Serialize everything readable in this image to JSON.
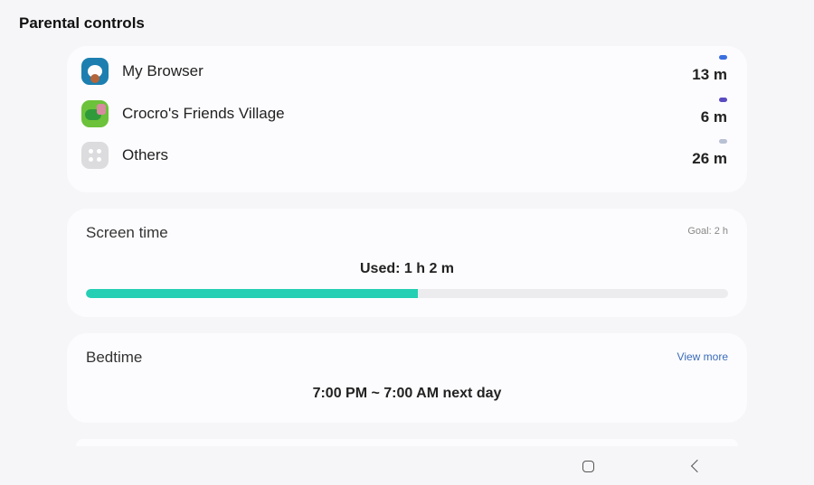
{
  "header": {
    "title": "Parental controls"
  },
  "apps": [
    {
      "name": "My Browser",
      "time": "13 m",
      "color": "#3a6fe0",
      "icon": "browser-app-icon"
    },
    {
      "name": "Crocro's Friends Village",
      "time": "6 m",
      "color": "#5a4bc0",
      "icon": "crocro-app-icon"
    },
    {
      "name": "Others",
      "time": "26 m",
      "color": "#b8c0d4",
      "icon": "others-grid-icon"
    }
  ],
  "screen_time": {
    "label": "Screen time",
    "goal": "Goal: 2 h",
    "used": "Used: 1 h 2 m",
    "progress_percent": 51.7,
    "color": "#24cfb4"
  },
  "bedtime": {
    "label": "Bedtime",
    "view_more": "View more",
    "schedule": "7:00 PM ~ 7:00 AM next day"
  },
  "nav": {
    "home": "home-icon",
    "back": "back-icon"
  }
}
